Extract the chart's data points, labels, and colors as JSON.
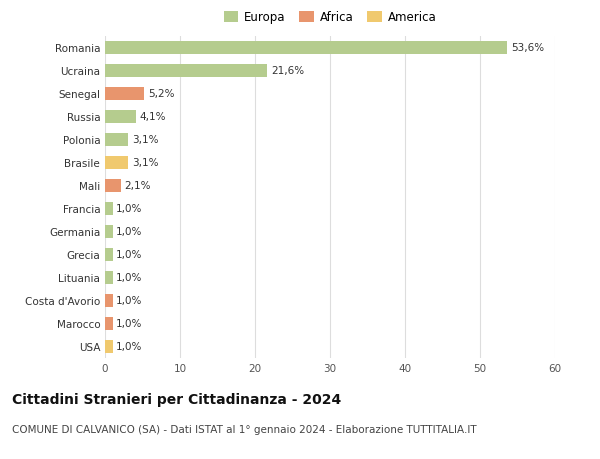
{
  "categories": [
    "Romania",
    "Ucraina",
    "Senegal",
    "Russia",
    "Polonia",
    "Brasile",
    "Mali",
    "Francia",
    "Germania",
    "Grecia",
    "Lituania",
    "Costa d'Avorio",
    "Marocco",
    "USA"
  ],
  "values": [
    53.6,
    21.6,
    5.2,
    4.1,
    3.1,
    3.1,
    2.1,
    1.0,
    1.0,
    1.0,
    1.0,
    1.0,
    1.0,
    1.0
  ],
  "labels": [
    "53,6%",
    "21,6%",
    "5,2%",
    "4,1%",
    "3,1%",
    "3,1%",
    "2,1%",
    "1,0%",
    "1,0%",
    "1,0%",
    "1,0%",
    "1,0%",
    "1,0%",
    "1,0%"
  ],
  "continent": [
    "Europa",
    "Europa",
    "Africa",
    "Europa",
    "Europa",
    "America",
    "Africa",
    "Europa",
    "Europa",
    "Europa",
    "Europa",
    "Africa",
    "Africa",
    "America"
  ],
  "colors": {
    "Europa": "#b5cc8e",
    "Africa": "#e8956d",
    "America": "#f0c96e"
  },
  "legend_order": [
    "Europa",
    "Africa",
    "America"
  ],
  "title": "Cittadini Stranieri per Cittadinanza - 2024",
  "subtitle": "COMUNE DI CALVANICO (SA) - Dati ISTAT al 1° gennaio 2024 - Elaborazione TUTTITALIA.IT",
  "xlim": [
    0,
    60
  ],
  "xticks": [
    0,
    10,
    20,
    30,
    40,
    50,
    60
  ],
  "background_color": "#ffffff",
  "grid_color": "#dddddd",
  "bar_height": 0.55,
  "title_fontsize": 10,
  "subtitle_fontsize": 7.5,
  "label_fontsize": 7.5,
  "tick_fontsize": 7.5,
  "legend_fontsize": 8.5
}
